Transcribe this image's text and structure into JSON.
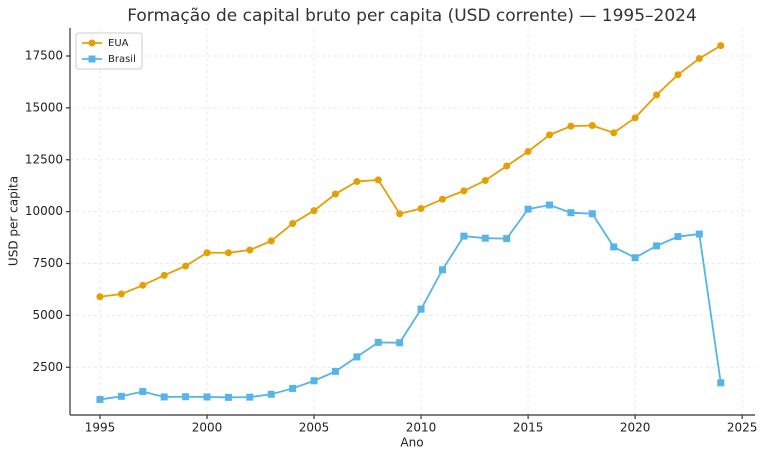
{
  "chart_data": {
    "type": "line",
    "title": "Formação de capital bruto per capita (USD corrente) — 1995–2024",
    "x_label": "Ano",
    "y_label": "USD per capita",
    "x": [
      1995,
      1996,
      1997,
      1998,
      1999,
      2000,
      2001,
      2002,
      2003,
      2004,
      2005,
      2006,
      2007,
      2008,
      2009,
      2010,
      2011,
      2012,
      2013,
      2014,
      2015,
      2016,
      2017,
      2018,
      2019,
      2020,
      2021,
      2022,
      2023,
      2024
    ],
    "series": [
      {
        "name": "EUA",
        "color": "#E69F00",
        "marker": "circle",
        "values": [
          5900,
          6030,
          6450,
          6930,
          7380,
          8020,
          8020,
          8150,
          8590,
          9430,
          10050,
          10850,
          11450,
          11530,
          9900,
          10150,
          10600,
          11000,
          11500,
          12200,
          12900,
          13700,
          14120,
          14150,
          13800,
          14520,
          15620,
          16600,
          17380,
          18000
        ]
      },
      {
        "name": "Brasil",
        "color": "#56B4E9",
        "marker": "square",
        "values": [
          950,
          1100,
          1330,
          1070,
          1080,
          1070,
          1050,
          1060,
          1200,
          1480,
          1850,
          2300,
          3000,
          3700,
          3680,
          5300,
          7200,
          8820,
          8720,
          8700,
          10120,
          10320,
          9950,
          9900,
          8300,
          7780,
          8350,
          8800,
          8920,
          1750
        ]
      }
    ],
    "xlim": [
      1993.6,
      2025.6
    ],
    "xticks": [
      1995,
      2000,
      2005,
      2010,
      2015,
      2020,
      2025
    ],
    "ylim": [
      200,
      18850
    ],
    "yticks": [
      2500,
      5000,
      7500,
      10000,
      12500,
      15000,
      17500
    ],
    "grid": true,
    "legend": "upper-left"
  }
}
